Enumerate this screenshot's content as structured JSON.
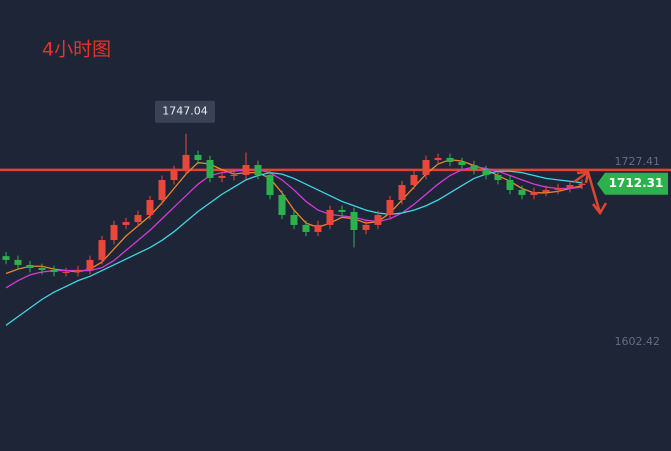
{
  "chart_data": {
    "type": "candlestick",
    "title": "4小时图",
    "open": [
      1662.0,
      1659.4,
      1655.9,
      1653.8,
      1652.4,
      1651.0,
      1651.0,
      1652.4,
      1659.4,
      1673.2,
      1683.7,
      1685.7,
      1690.6,
      1701.0,
      1714.9,
      1721.9,
      1732.3,
      1728.8,
      1716.3,
      1717.7,
      1718.4,
      1725.3,
      1718.4,
      1704.5,
      1690.6,
      1683.7,
      1678.8,
      1683.7,
      1694.1,
      1692.7,
      1680.2,
      1683.7,
      1690.6,
      1701.0,
      1711.4,
      1718.4,
      1728.8,
      1730.2,
      1727.4,
      1725.3,
      1721.9,
      1718.4,
      1714.9,
      1708.0,
      1704.5,
      1706.6,
      1708.0,
      1709.3,
      1711.4
    ],
    "high": [
      1665.0,
      1662.4,
      1658.9,
      1656.8,
      1655.4,
      1654.0,
      1655.4,
      1662.4,
      1676.2,
      1686.7,
      1688.7,
      1693.6,
      1704.0,
      1717.9,
      1724.9,
      1747.04,
      1735.3,
      1731.8,
      1720.7,
      1721.4,
      1734.0,
      1728.3,
      1721.4,
      1707.5,
      1693.6,
      1686.7,
      1686.7,
      1697.1,
      1697.1,
      1695.7,
      1686.7,
      1693.6,
      1704.0,
      1714.4,
      1721.4,
      1731.8,
      1733.2,
      1733.2,
      1730.4,
      1728.3,
      1724.9,
      1721.4,
      1717.9,
      1711.0,
      1709.6,
      1711.0,
      1712.3,
      1714.4,
      1715.3
    ],
    "low": [
      1656.4,
      1652.9,
      1650.8,
      1649.4,
      1648.0,
      1648.0,
      1648.0,
      1649.4,
      1656.4,
      1670.2,
      1680.7,
      1682.7,
      1687.6,
      1698.0,
      1711.9,
      1718.9,
      1725.8,
      1713.3,
      1713.3,
      1714.7,
      1715.4,
      1715.4,
      1701.5,
      1687.6,
      1680.7,
      1675.8,
      1675.8,
      1680.7,
      1689.7,
      1668.0,
      1677.2,
      1680.7,
      1687.6,
      1698.0,
      1708.4,
      1715.4,
      1725.8,
      1724.4,
      1722.3,
      1718.9,
      1715.4,
      1711.9,
      1705.0,
      1701.5,
      1701.5,
      1703.6,
      1705.0,
      1706.3,
      1708.4
    ],
    "close": [
      1659.4,
      1655.9,
      1653.8,
      1652.4,
      1651.0,
      1651.0,
      1652.4,
      1659.4,
      1673.2,
      1683.7,
      1685.7,
      1690.6,
      1701.0,
      1714.9,
      1721.9,
      1732.3,
      1728.8,
      1716.3,
      1717.7,
      1718.4,
      1725.3,
      1718.4,
      1704.5,
      1690.6,
      1683.7,
      1678.8,
      1683.7,
      1694.1,
      1692.7,
      1680.2,
      1683.7,
      1690.6,
      1701.0,
      1711.4,
      1718.4,
      1728.8,
      1730.2,
      1727.4,
      1725.3,
      1721.9,
      1718.4,
      1714.9,
      1708.0,
      1704.5,
      1706.6,
      1708.0,
      1709.3,
      1711.4,
      1712.31
    ],
    "up_color": "#e8473a",
    "down_color": "#2bb24c",
    "series": [
      {
        "color": "#f0832a",
        "values": [
          1650,
          1653,
          1655,
          1655,
          1653,
          1652,
          1651,
          1653,
          1658,
          1667,
          1676,
          1683,
          1690,
          1699,
          1709,
          1719,
          1727,
          1726,
          1722,
          1719,
          1720,
          1720,
          1716,
          1706,
          1694,
          1685,
          1682,
          1685,
          1689,
          1688,
          1685,
          1686,
          1692,
          1701,
          1710,
          1719,
          1726,
          1729,
          1728,
          1725,
          1722,
          1718,
          1714,
          1709,
          1706,
          1706,
          1707,
          1709,
          1711
        ]
      },
      {
        "color": "#d43ad8",
        "values": [
          1640,
          1645,
          1649,
          1651,
          1652,
          1652,
          1652,
          1652,
          1654,
          1659,
          1666,
          1673,
          1680,
          1688,
          1696,
          1704,
          1712,
          1718,
          1720,
          1721,
          1722,
          1722,
          1720,
          1715,
          1708,
          1700,
          1694,
          1691,
          1690,
          1689,
          1687,
          1686,
          1688,
          1692,
          1698,
          1705,
          1712,
          1718,
          1722,
          1724,
          1723,
          1721,
          1718,
          1715,
          1712,
          1710,
          1709,
          1709,
          1710
        ]
      },
      {
        "color": "#3fd6e6",
        "values": [
          1614,
          1620,
          1626,
          1632,
          1637,
          1641,
          1645,
          1648,
          1652,
          1656,
          1660,
          1664,
          1668,
          1673,
          1679,
          1686,
          1693,
          1699,
          1705,
          1710,
          1715,
          1718,
          1720,
          1719,
          1716,
          1712,
          1708,
          1704,
          1700,
          1697,
          1694,
          1692,
          1691,
          1692,
          1694,
          1697,
          1701,
          1706,
          1711,
          1716,
          1719,
          1721,
          1721,
          1720,
          1718,
          1716,
          1715,
          1714,
          1713
        ]
      }
    ],
    "horizontal_line": {
      "value": 1721.9,
      "color": "#e0452f"
    },
    "ylim": [
      1526.7,
      1839.9
    ],
    "yticks": [
      1602.42,
      1727.41
    ],
    "grid": false
  }
}
